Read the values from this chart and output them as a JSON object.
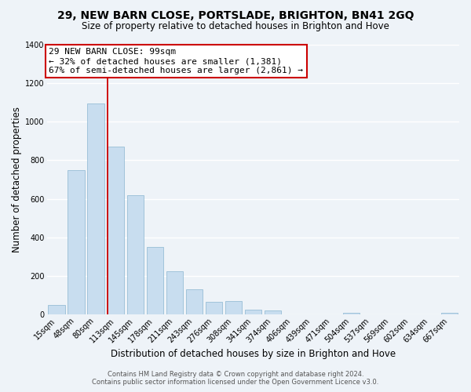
{
  "title": "29, NEW BARN CLOSE, PORTSLADE, BRIGHTON, BN41 2GQ",
  "subtitle": "Size of property relative to detached houses in Brighton and Hove",
  "xlabel": "Distribution of detached houses by size in Brighton and Hove",
  "ylabel": "Number of detached properties",
  "categories": [
    "15sqm",
    "48sqm",
    "80sqm",
    "113sqm",
    "145sqm",
    "178sqm",
    "211sqm",
    "243sqm",
    "276sqm",
    "308sqm",
    "341sqm",
    "374sqm",
    "406sqm",
    "439sqm",
    "471sqm",
    "504sqm",
    "537sqm",
    "569sqm",
    "602sqm",
    "634sqm",
    "667sqm"
  ],
  "values": [
    50,
    750,
    1095,
    870,
    620,
    350,
    225,
    130,
    65,
    70,
    25,
    20,
    0,
    0,
    0,
    10,
    0,
    0,
    0,
    0,
    10
  ],
  "bar_color": "#c8ddef",
  "bar_edge_color": "#8ab5d0",
  "vline_color": "#cc0000",
  "annotation_title": "29 NEW BARN CLOSE: 99sqm",
  "annotation_line1": "← 32% of detached houses are smaller (1,381)",
  "annotation_line2": "67% of semi-detached houses are larger (2,861) →",
  "annotation_box_color": "#ffffff",
  "annotation_box_edge": "#cc0000",
  "ylim": [
    0,
    1400
  ],
  "yticks": [
    0,
    200,
    400,
    600,
    800,
    1000,
    1200,
    1400
  ],
  "footer1": "Contains HM Land Registry data © Crown copyright and database right 2024.",
  "footer2": "Contains public sector information licensed under the Open Government Licence v3.0.",
  "background_color": "#eef3f8",
  "grid_color": "#ffffff",
  "title_fontsize": 10,
  "subtitle_fontsize": 8.5,
  "axis_label_fontsize": 8.5,
  "tick_fontsize": 7,
  "annotation_fontsize": 8,
  "footer_fontsize": 6
}
